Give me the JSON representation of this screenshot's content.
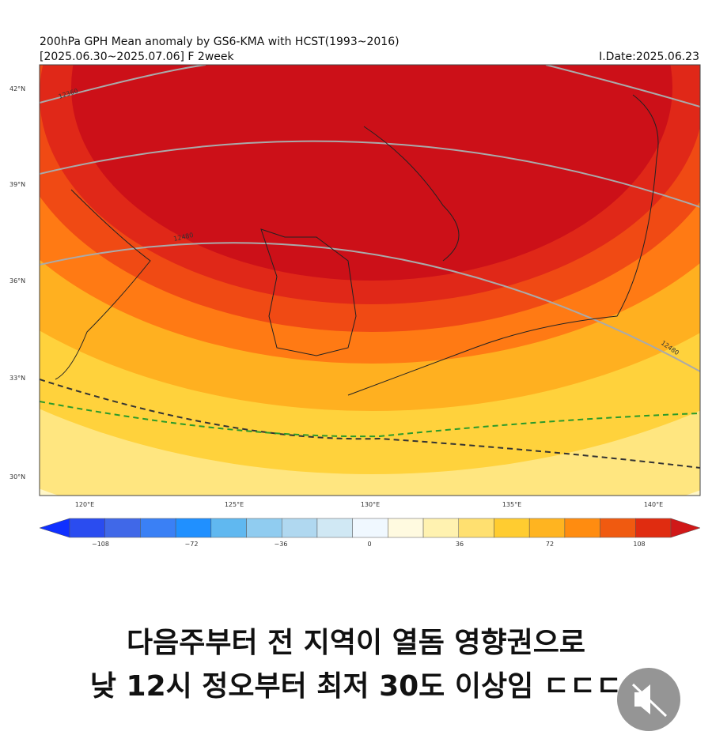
{
  "map": {
    "title": "200hPa GPH Mean anomaly by GS6-KMA with HCST(1993~2016)",
    "subtitle": "[2025.06.30~2025.07.06] F 2week",
    "issue_date": "I.Date:2025.06.23",
    "lat_labels": [
      "42°N",
      "39°N",
      "36°N",
      "33°N",
      "30°N"
    ],
    "lon_labels": [
      "120°E",
      "125°E",
      "130°E",
      "135°E",
      "140°E"
    ],
    "contour_labels": [
      "12360",
      "12480",
      "12480"
    ]
  },
  "colorbar": {
    "tick_labels": [
      "−108",
      "−72",
      "−36",
      "0",
      "36",
      "72",
      "108"
    ]
  },
  "caption": {
    "lines": [
      "다음주부터 전 지역이 열돔 영향권으로",
      "낮 12시 정오부터 최저 30도 이상임 ㄷㄷㄷ"
    ]
  }
}
